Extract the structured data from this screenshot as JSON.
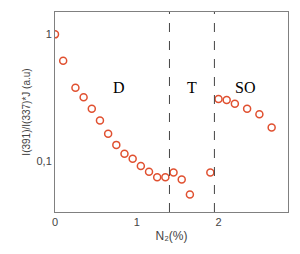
{
  "chart_data": {
    "type": "scatter",
    "x": [
      0.0,
      0.1,
      0.25,
      0.35,
      0.45,
      0.55,
      0.65,
      0.75,
      0.85,
      0.95,
      1.05,
      1.15,
      1.25,
      1.35,
      1.45,
      1.55,
      1.65,
      1.9,
      2.0,
      2.1,
      2.2,
      2.35,
      2.5,
      2.65
    ],
    "values": [
      1.0,
      0.62,
      0.38,
      0.32,
      0.26,
      0.21,
      0.165,
      0.135,
      0.115,
      0.105,
      0.092,
      0.083,
      0.075,
      0.075,
      0.082,
      0.072,
      0.055,
      0.082,
      0.31,
      0.305,
      0.285,
      0.26,
      0.235,
      0.185
    ],
    "color": "#e05030",
    "marker": "circle-open",
    "x_label": "N₂(%)",
    "y_label": "I(391)/I(337)*J (a.u)",
    "xlim": [
      0,
      2.85
    ],
    "ylim": [
      0.04,
      1.5
    ],
    "xticks": [
      0,
      1,
      2
    ],
    "yticks": [
      {
        "value": 0.1,
        "label": "0,1"
      },
      1
    ],
    "log": "y",
    "grid": false,
    "vertical_lines": [
      1.4,
      1.95
    ],
    "line_style": "dash",
    "annotations": [
      {
        "text": "D",
        "x": 0.78,
        "y": 0.38
      },
      {
        "text": "T",
        "x": 1.67,
        "y": 0.38
      },
      {
        "text": "SO",
        "x": 2.32,
        "y": 0.38
      }
    ]
  }
}
